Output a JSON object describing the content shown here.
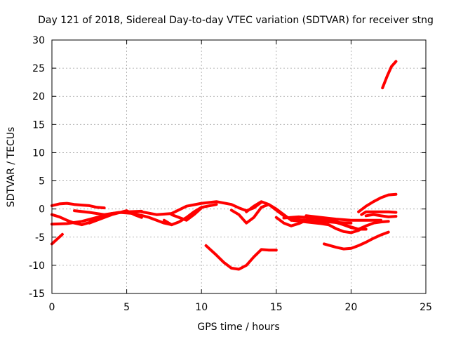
{
  "chart_data": {
    "type": "scatter",
    "title": "Day 121 of 2018, Sidereal Day-to-day VTEC variation (SDTVAR) for receiver stng",
    "xlabel": "GPS time / hours",
    "ylabel": "SDTVAR / TECUs",
    "xlim": [
      0,
      25
    ],
    "ylim": [
      -15,
      30
    ],
    "xticks": [
      0,
      5,
      10,
      15,
      20,
      25
    ],
    "yticks": [
      -15,
      -10,
      -5,
      0,
      5,
      10,
      15,
      20,
      25,
      30
    ],
    "grid": true,
    "marker_color": "#ff0000",
    "series": [
      {
        "name": "s1",
        "x": [
          0,
          0.7
        ],
        "y": [
          -6.2,
          -4.5
        ]
      },
      {
        "name": "s2",
        "x": [
          0,
          0.5,
          1.0,
          1.5,
          2.0,
          2.5,
          3.0,
          3.5
        ],
        "y": [
          0.6,
          0.9,
          1.0,
          0.8,
          0.7,
          0.6,
          0.3,
          0.2
        ]
      },
      {
        "name": "s3",
        "x": [
          0,
          0.5,
          1.0,
          1.5,
          2.0,
          2.5,
          3.0
        ],
        "y": [
          -1.0,
          -1.4,
          -2.0,
          -2.5,
          -2.8,
          -2.4,
          -1.5
        ]
      },
      {
        "name": "s4",
        "x": [
          0,
          1.0,
          2.0,
          3.0,
          4.0,
          5.0,
          6.0
        ],
        "y": [
          -2.7,
          -2.6,
          -2.2,
          -1.5,
          -0.8,
          -0.5,
          -0.4
        ]
      },
      {
        "name": "s5",
        "x": [
          1.5,
          2.5,
          3.5,
          4.5,
          5.5,
          6.5,
          7.5,
          8.0
        ],
        "y": [
          -0.3,
          -0.6,
          -1.0,
          -0.6,
          -0.8,
          -1.5,
          -2.5,
          -2.8
        ]
      },
      {
        "name": "s6",
        "x": [
          2.5,
          3.5,
          4.0,
          5.0,
          5.5,
          6.0
        ],
        "y": [
          -2.5,
          -1.5,
          -1.0,
          -0.3,
          -1.0,
          -1.5
        ]
      },
      {
        "name": "s7",
        "x": [
          6.0,
          7.0,
          8.0,
          9.0,
          10.0,
          11.0,
          12.0,
          12.5,
          13.0,
          13.5,
          14.0
        ],
        "y": [
          -0.5,
          -1.0,
          -0.8,
          0.5,
          1.0,
          1.3,
          0.8,
          0.2,
          -0.3,
          0.2,
          1.2
        ]
      },
      {
        "name": "s8",
        "x": [
          7.5,
          8.0,
          8.5,
          9.0,
          9.5,
          10.0,
          11.0
        ],
        "y": [
          -2.0,
          -2.8,
          -2.3,
          -1.5,
          -0.5,
          0.3,
          0.8
        ]
      },
      {
        "name": "s9",
        "x": [
          8.0,
          8.5,
          9.0,
          9.5,
          10.0
        ],
        "y": [
          -1.0,
          -1.5,
          -2.0,
          -1.0,
          0.2
        ]
      },
      {
        "name": "s10",
        "x": [
          12.0,
          12.5,
          13.0,
          13.5,
          14.0,
          14.5,
          15.0,
          15.5,
          16.0
        ],
        "y": [
          -0.2,
          -1.0,
          -2.5,
          -1.5,
          0.3,
          0.8,
          0.0,
          -1.0,
          -2.0
        ]
      },
      {
        "name": "s11",
        "x": [
          13.0,
          13.5,
          14.0,
          14.5,
          15.0,
          15.5,
          16.0,
          17.0,
          18.0,
          19.0,
          20.0
        ],
        "y": [
          -0.5,
          0.5,
          1.3,
          0.8,
          -0.2,
          -1.2,
          -1.8,
          -2.0,
          -2.2,
          -2.4,
          -2.5
        ]
      },
      {
        "name": "s12",
        "x": [
          15.0,
          15.5,
          16.0,
          16.5,
          17.0,
          17.5,
          18.0,
          18.5,
          19.0,
          19.5,
          20.0,
          20.5,
          21.0
        ],
        "y": [
          -1.5,
          -2.5,
          -3.0,
          -2.6,
          -2.0,
          -1.6,
          -1.7,
          -2.0,
          -2.2,
          -2.8,
          -3.3,
          -3.6,
          -3.6
        ]
      },
      {
        "name": "s13",
        "x": [
          15.5,
          16.5,
          17.5,
          18.5,
          19.5,
          20.5,
          21.0
        ],
        "y": [
          -1.6,
          -1.4,
          -1.6,
          -2.0,
          -2.8,
          -3.6,
          -3.0
        ]
      },
      {
        "name": "s14",
        "x": [
          16.0,
          17.0,
          18.0,
          18.5,
          19.0,
          19.5,
          20.0,
          20.5,
          21.0,
          21.5,
          22.0,
          22.5
        ],
        "y": [
          -2.0,
          -2.3,
          -2.6,
          -2.8,
          -3.5,
          -4.0,
          -4.2,
          -3.8,
          -3.0,
          -2.5,
          -2.3,
          -2.2
        ]
      },
      {
        "name": "s15",
        "x": [
          17.0,
          18.0,
          19.0,
          20.0,
          21.0,
          22.0
        ],
        "y": [
          -1.2,
          -1.5,
          -1.8,
          -2.0,
          -2.0,
          -2.0
        ]
      },
      {
        "name": "s16",
        "x": [
          20.5,
          21.0,
          21.5,
          22.0,
          22.5,
          23.0
        ],
        "y": [
          -0.5,
          0.5,
          1.3,
          2.0,
          2.5,
          2.6
        ]
      },
      {
        "name": "s17",
        "x": [
          20.7,
          21.0,
          21.5,
          22.0,
          22.5,
          23.0
        ],
        "y": [
          -1.0,
          -0.5,
          -0.5,
          -0.5,
          -0.5,
          -0.6
        ]
      },
      {
        "name": "s18",
        "x": [
          21.0,
          21.5,
          22.0,
          22.5,
          23.0
        ],
        "y": [
          -1.2,
          -1.0,
          -1.2,
          -1.4,
          -1.3
        ]
      },
      {
        "name": "s19",
        "x": [
          10.3,
          11.0,
          11.5,
          12.0,
          12.5,
          13.0,
          13.5,
          14.0,
          14.5,
          15.0
        ],
        "y": [
          -6.5,
          -8.2,
          -9.5,
          -10.5,
          -10.7,
          -10.0,
          -8.5,
          -7.2,
          -7.3,
          -7.3
        ]
      },
      {
        "name": "s20",
        "x": [
          18.2,
          19.0,
          19.5,
          20.0,
          20.5,
          21.0,
          21.5,
          22.0,
          22.5
        ],
        "y": [
          -6.2,
          -6.8,
          -7.1,
          -7.0,
          -6.5,
          -5.9,
          -5.2,
          -4.6,
          -4.1
        ]
      },
      {
        "name": "s21",
        "x": [
          22.1,
          22.4,
          22.7,
          23.0
        ],
        "y": [
          21.5,
          23.5,
          25.3,
          26.2
        ]
      }
    ]
  }
}
